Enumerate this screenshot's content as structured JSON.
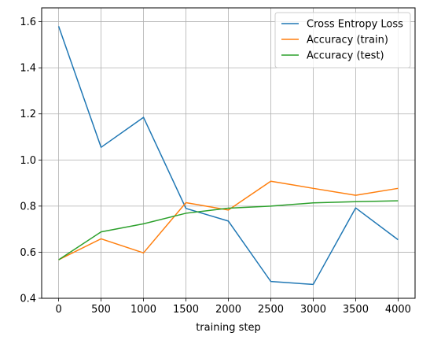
{
  "chart_data": {
    "type": "line",
    "title": "",
    "xlabel": "training step",
    "ylabel": "",
    "x": [
      0,
      500,
      1000,
      1500,
      2000,
      2500,
      3000,
      3500,
      4000
    ],
    "xticks": [
      0,
      500,
      1000,
      1500,
      2000,
      2500,
      3000,
      3500,
      4000
    ],
    "yticks": [
      0.4,
      0.6,
      0.8,
      1.0,
      1.2,
      1.4,
      1.6
    ],
    "ytick_labels": [
      "0.4",
      "0.6",
      "0.8",
      "1.0",
      "1.2",
      "1.4",
      "1.6"
    ],
    "xlim": [
      -200,
      4200
    ],
    "ylim": [
      0.4,
      1.66
    ],
    "grid": true,
    "legend_position": "top-right",
    "series": [
      {
        "name": "Cross Entropy Loss",
        "color": "#1f77b4",
        "values": [
          1.58,
          1.055,
          1.185,
          0.79,
          0.735,
          0.473,
          0.46,
          0.792,
          0.654
        ]
      },
      {
        "name": "Accuracy (train)",
        "color": "#ff7f0e",
        "values": [
          0.567,
          0.658,
          0.597,
          0.815,
          0.783,
          0.908,
          0.877,
          0.847,
          0.877
        ]
      },
      {
        "name": "Accuracy (test)",
        "color": "#2ca02c",
        "values": [
          0.567,
          0.688,
          0.723,
          0.769,
          0.791,
          0.8,
          0.814,
          0.819,
          0.823
        ]
      }
    ]
  }
}
